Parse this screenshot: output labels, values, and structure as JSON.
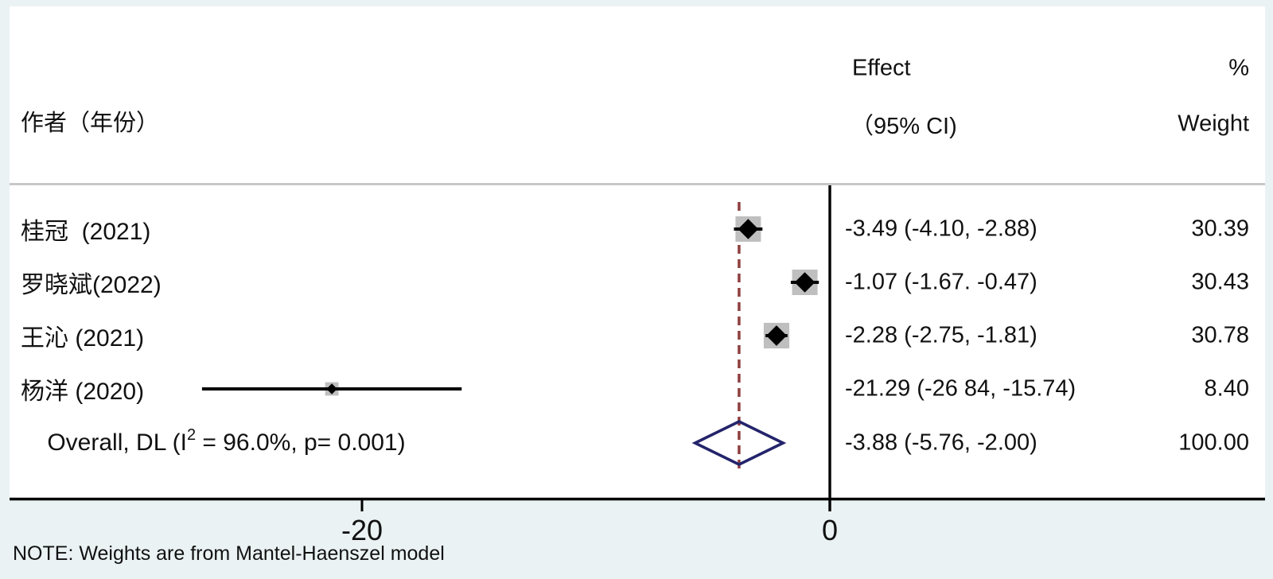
{
  "header": {
    "author_col": "作者（年份）",
    "effect_col_line1": "Effect",
    "effect_col_line2": "（95% CI)",
    "weight_col_line1": "%",
    "weight_col_line2": "Weight"
  },
  "note": "NOTE: Weights are from Mantel-Haenszel model",
  "colors": {
    "page_background": "#eaf2f3",
    "plot_background": "#ffffff",
    "separator": "#c8c8c8",
    "axis": "#000000",
    "ci_line": "#000000",
    "weight_box": "#bfbfbf",
    "marker": "#000000",
    "overall_diamond_outline": "#23246b",
    "overall_dashed_line": "#8f3f3f"
  },
  "chart_data": {
    "type": "forest",
    "title": "",
    "x_axis": {
      "ticks": [
        -20,
        0
      ],
      "tick_labels": [
        "-20",
        "0"
      ],
      "null_line_value": 0,
      "overall_dashed_value": -3.88
    },
    "studies": [
      {
        "label": "桂冠  (2021)",
        "effect": -3.49,
        "ci": [
          -4.1,
          -2.88
        ],
        "effect_label": "-3.49 (-4.10, -2.88)",
        "weight": 30.39,
        "weight_label": "30.39"
      },
      {
        "label": "罗晓斌(2022)",
        "effect": -1.07,
        "ci": [
          -1.67,
          -0.47
        ],
        "effect_label": "-1.07 (-1.67. -0.47)",
        "weight": 30.43,
        "weight_label": "30.43"
      },
      {
        "label": "王沁 (2021)",
        "effect": -2.28,
        "ci": [
          -2.75,
          -1.81
        ],
        "effect_label": "-2.28 (-2.75, -1.81)",
        "weight": 30.78,
        "weight_label": "30.78"
      },
      {
        "label": "杨洋 (2020)",
        "effect": -21.29,
        "ci": [
          -26.84,
          -15.74
        ],
        "effect_label": "-21.29 (-26 84, -15.74)",
        "weight": 8.4,
        "weight_label": "8.40"
      }
    ],
    "overall": {
      "label_pre": "Overall, DL (I",
      "label_sup": "2",
      "label_post": " = 96.0%, p= 0.001)",
      "effect": -3.88,
      "ci": [
        -5.76,
        -2.0
      ],
      "effect_label": "-3.88 (-5.76, -2.00)",
      "weight_label": "100.00",
      "heterogeneity_i2": "96.0%",
      "p_value": "0.001",
      "model": "DL"
    }
  }
}
